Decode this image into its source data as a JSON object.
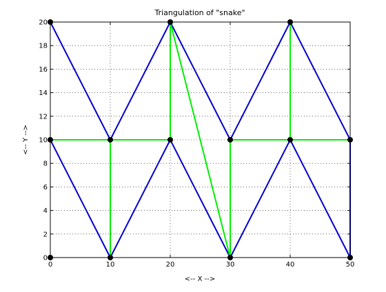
{
  "chart_data": {
    "type": "line",
    "title": "Triangulation of \"snake\"",
    "xlabel": "<-- X -->",
    "ylabel": "<-- Y -->",
    "xlim": [
      0,
      50
    ],
    "ylim": [
      0,
      20
    ],
    "xticks": [
      0,
      10,
      20,
      30,
      40,
      50
    ],
    "yticks": [
      0,
      2,
      4,
      6,
      8,
      10,
      12,
      14,
      16,
      18,
      20
    ],
    "grid": true,
    "points": [
      [
        0,
        0
      ],
      [
        0,
        10
      ],
      [
        0,
        20
      ],
      [
        10,
        0
      ],
      [
        10,
        10
      ],
      [
        20,
        10
      ],
      [
        20,
        20
      ],
      [
        30,
        0
      ],
      [
        30,
        10
      ],
      [
        40,
        10
      ],
      [
        40,
        20
      ],
      [
        50,
        0
      ],
      [
        50,
        10
      ]
    ],
    "series": [
      {
        "color": "#0000cc",
        "segments": [
          [
            [
              0,
              20
            ],
            [
              10,
              10
            ]
          ],
          [
            [
              10,
              10
            ],
            [
              20,
              20
            ]
          ],
          [
            [
              20,
              20
            ],
            [
              30,
              10
            ]
          ],
          [
            [
              30,
              10
            ],
            [
              40,
              20
            ]
          ],
          [
            [
              40,
              20
            ],
            [
              50,
              10
            ]
          ],
          [
            [
              0,
              10
            ],
            [
              10,
              0
            ]
          ],
          [
            [
              10,
              0
            ],
            [
              20,
              10
            ]
          ],
          [
            [
              20,
              10
            ],
            [
              30,
              0
            ]
          ],
          [
            [
              30,
              0
            ],
            [
              40,
              10
            ]
          ],
          [
            [
              40,
              10
            ],
            [
              50,
              0
            ]
          ],
          [
            [
              50,
              0
            ],
            [
              50,
              10
            ]
          ]
        ]
      },
      {
        "color": "#00ee00",
        "segments": [
          [
            [
              0,
              10
            ],
            [
              20,
              10
            ]
          ],
          [
            [
              30,
              10
            ],
            [
              50,
              10
            ]
          ],
          [
            [
              10,
              0
            ],
            [
              10,
              10
            ]
          ],
          [
            [
              20,
              10
            ],
            [
              20,
              20
            ]
          ],
          [
            [
              20,
              20
            ],
            [
              30,
              0
            ]
          ],
          [
            [
              30,
              0
            ],
            [
              30,
              10
            ]
          ],
          [
            [
              40,
              10
            ],
            [
              40,
              20
            ]
          ]
        ]
      }
    ]
  }
}
